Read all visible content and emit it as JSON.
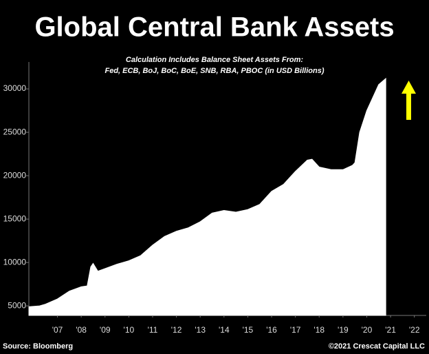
{
  "chart_data": {
    "type": "area",
    "title": "Global Central Bank Assets",
    "subtitle": [
      "Calculation Includes Balance Sheet Assets From:",
      "Fed, ECB, BoJ, BoC, BoE, SNB, RBA, PBOC (in USD Billions)"
    ],
    "source": "Source: Bloomberg",
    "credit": "©2021 Crescat Capital LLC",
    "color": "#ffffff",
    "x": [
      2006.3,
      2006.75,
      2007.0,
      2007.5,
      2008.0,
      2008.5,
      2008.75,
      2008.9,
      2009.0,
      2009.2,
      2009.5,
      2010.0,
      2010.5,
      2011.0,
      2011.5,
      2012.0,
      2012.5,
      2013.0,
      2013.5,
      2014.0,
      2014.5,
      2015.0,
      2015.5,
      2016.0,
      2016.5,
      2017.0,
      2017.5,
      2018.0,
      2018.2,
      2018.5,
      2019.0,
      2019.5,
      2019.9,
      2020.0,
      2020.2,
      2020.5,
      2020.75,
      2021.0,
      2021.3
    ],
    "values": [
      4900,
      5000,
      5200,
      5800,
      6700,
      7200,
      7300,
      9500,
      9900,
      9000,
      9300,
      9800,
      10200,
      10800,
      12000,
      13000,
      13600,
      14000,
      14700,
      15700,
      16000,
      15800,
      16100,
      16700,
      18200,
      19000,
      20500,
      21800,
      21900,
      21000,
      20700,
      20700,
      21200,
      21500,
      25000,
      27500,
      29000,
      30500,
      31200
    ],
    "xlim": [
      2006.3,
      2023.0
    ],
    "ylim": [
      3900,
      33100
    ],
    "xticks": [
      {
        "value": 2007.5,
        "label": "'07"
      },
      {
        "value": 2008.5,
        "label": "'08"
      },
      {
        "value": 2009.5,
        "label": "'09"
      },
      {
        "value": 2010.5,
        "label": "'10"
      },
      {
        "value": 2011.5,
        "label": "'11"
      },
      {
        "value": 2012.5,
        "label": "'12"
      },
      {
        "value": 2013.5,
        "label": "'13"
      },
      {
        "value": 2014.5,
        "label": "'14"
      },
      {
        "value": 2015.5,
        "label": "'15"
      },
      {
        "value": 2016.5,
        "label": "'16"
      },
      {
        "value": 2017.5,
        "label": "'17"
      },
      {
        "value": 2018.5,
        "label": "'18"
      },
      {
        "value": 2019.5,
        "label": "'19"
      },
      {
        "value": 2020.5,
        "label": "'20"
      },
      {
        "value": 2021.5,
        "label": "'21"
      },
      {
        "value": 2022.5,
        "label": "'22"
      }
    ],
    "yticks": [
      5000,
      10000,
      15000,
      20000,
      25000,
      30000
    ]
  }
}
